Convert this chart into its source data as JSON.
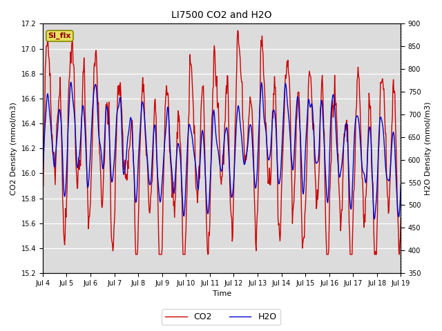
{
  "title": "LI7500 CO2 and H2O",
  "xlabel": "Time",
  "ylabel_left": "CO2 Density (mmol/m3)",
  "ylabel_right": "H2O Density (mmol/m3)",
  "ylim_left": [
    15.2,
    17.2
  ],
  "ylim_right": [
    350,
    900
  ],
  "co2_color": "#CC0000",
  "h2o_color": "#0000CC",
  "bg_color": "#DCDCDC",
  "fig_bg": "#FFFFFF",
  "annotation_text": "SI_flx",
  "annotation_bg": "#E8E060",
  "legend_co2": "CO2",
  "legend_h2o": "H2O",
  "xtick_labels": [
    "Jul 4",
    "Jul 5",
    "Jul 6",
    "Jul 7",
    "Jul 8",
    "Jul 9",
    "Jul 10",
    "Jul 11",
    "Jul 12",
    "Jul 13",
    "Jul 14",
    "Jul 15",
    "Jul 16",
    "Jul 17",
    "Jul 18",
    "Jul 19"
  ],
  "yticks_left": [
    15.2,
    15.4,
    15.6,
    15.8,
    16.0,
    16.2,
    16.4,
    16.6,
    16.8,
    17.0,
    17.2
  ],
  "yticks_right": [
    350,
    400,
    450,
    500,
    550,
    600,
    650,
    700,
    750,
    800,
    850,
    900
  ],
  "linewidth": 1.0,
  "seed": 12345
}
